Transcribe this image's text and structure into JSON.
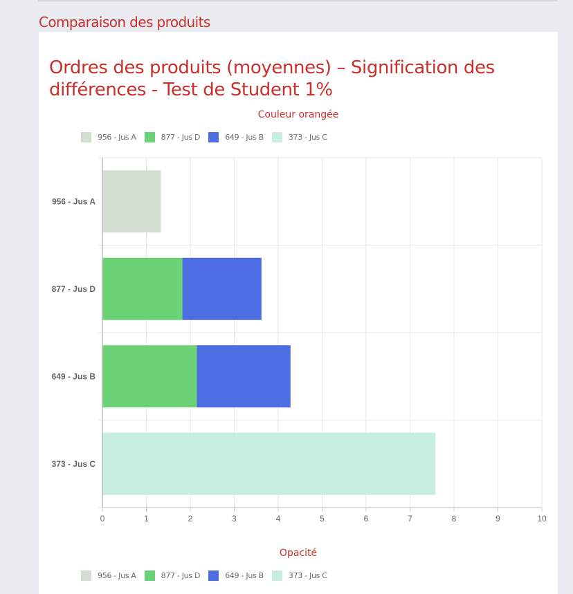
{
  "section": {
    "title": "Comparaison des produits"
  },
  "chart_title": "Ordres des produits (moyennes) – Signification des différences - Test de Student 1%",
  "top_subtitle": "Couleur orangée",
  "bottom_subtitle": "Opacité",
  "legend": [
    {
      "label": "956 - Jus A",
      "color": "#d3ddd1"
    },
    {
      "label": "877 - Jus D",
      "color": "#6bd376"
    },
    {
      "label": "649 - Jus B",
      "color": "#4d6de2"
    },
    {
      "label": "373 - Jus C",
      "color": "#c8eee0"
    }
  ],
  "chart_data": {
    "type": "bar",
    "orientation": "horizontal",
    "stacked": true,
    "categories": [
      "956 - Jus A",
      "877 - Jus D",
      "649 - Jus B",
      "373 - Jus C"
    ],
    "series": [
      {
        "name": "956 - Jus A",
        "color": "#d3ddd1",
        "values": [
          1.33,
          0,
          0,
          0
        ]
      },
      {
        "name": "877 - Jus D",
        "color": "#6bd376",
        "values": [
          0,
          1.82,
          2.15,
          0
        ]
      },
      {
        "name": "649 - Jus B",
        "color": "#4d6de2",
        "values": [
          0,
          1.8,
          2.13,
          0
        ]
      },
      {
        "name": "373 - Jus C",
        "color": "#c8eee0",
        "values": [
          0,
          0,
          0,
          7.58
        ]
      }
    ],
    "xlim": [
      0,
      10
    ],
    "xticks": [
      "0",
      "1",
      "2",
      "3",
      "4",
      "5",
      "6",
      "7",
      "8",
      "9",
      "10"
    ],
    "grid": true,
    "legend_position": "top"
  }
}
